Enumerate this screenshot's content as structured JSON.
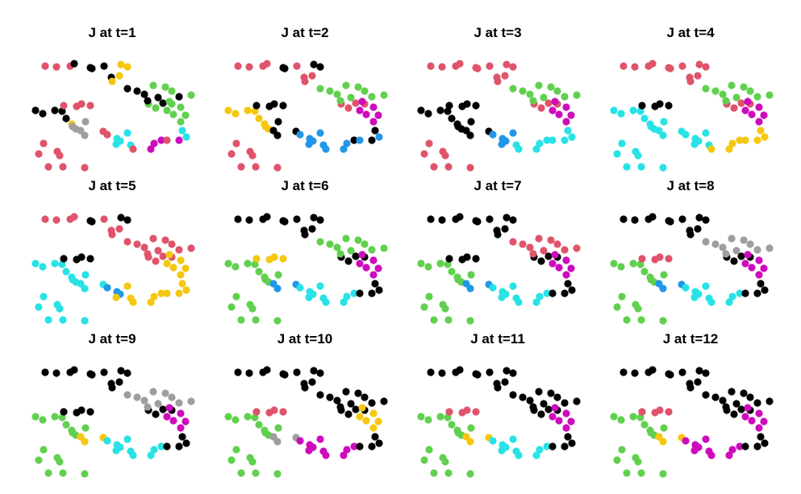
{
  "chart_data": {
    "type": "scatter",
    "layout": "3x4 small multiples",
    "axes_visible": false,
    "grid": false,
    "legend": "none",
    "palette": [
      "#000000",
      "#df536b",
      "#61d04f",
      "#2297e6",
      "#28e2e5",
      "#cd0bbc",
      "#f5c710",
      "#9e9e9e"
    ],
    "shared_x": [
      21,
      35,
      52,
      57,
      77,
      79,
      94,
      103,
      104,
      113,
      115,
      123,
      149,
      158,
      167,
      178,
      9,
      18,
      33,
      42,
      47,
      54,
      55,
      59,
      71,
      65,
      70,
      93,
      98,
      110,
      114,
      123,
      109,
      127,
      130,
      152,
      156,
      165,
      172,
      187,
      196,
      191,
      189,
      195,
      189,
      172,
      180,
      175,
      155,
      170,
      202,
      178,
      123,
      135,
      144,
      161,
      187,
      148,
      44,
      66,
      77,
      60,
      13,
      36,
      39,
      19,
      25,
      43,
      70
    ],
    "shared_y": [
      24,
      25,
      24,
      21,
      26,
      27,
      24,
      38,
      43,
      36,
      22,
      25,
      71,
      76,
      70,
      71,
      79,
      83,
      79,
      80,
      89,
      96,
      99,
      102,
      93,
      104,
      110,
      105,
      109,
      114,
      117,
      107,
      121,
      122,
      127,
      127,
      120,
      116,
      116,
      116,
      112,
      104,
      93,
      85,
      75,
      79,
      84,
      68,
      48,
      50,
      60,
      55,
      52,
      55,
      59,
      63,
      62,
      67,
      73,
      71,
      73,
      74,
      133,
      130,
      135,
      120,
      149,
      149,
      150
    ],
    "panels": [
      {
        "title": "J at t=1",
        "colors": [
          1,
          1,
          1,
          0,
          0,
          0,
          0,
          0,
          6,
          6,
          6,
          6,
          2,
          2,
          0,
          2,
          0,
          0,
          0,
          0,
          0,
          6,
          7,
          7,
          7,
          7,
          7,
          1,
          1,
          4,
          4,
          4,
          4,
          4,
          1,
          5,
          5,
          5,
          1,
          5,
          4,
          4,
          2,
          2,
          2,
          2,
          2,
          2,
          2,
          2,
          2,
          2,
          0,
          0,
          0,
          0,
          0,
          0,
          1,
          1,
          1,
          1,
          1,
          1,
          1,
          1,
          1,
          1,
          1
        ]
      },
      {
        "title": "J at t=2",
        "colors": [
          1,
          1,
          1,
          1,
          0,
          0,
          1,
          1,
          1,
          1,
          0,
          0,
          1,
          1,
          1,
          1,
          6,
          6,
          6,
          6,
          6,
          6,
          6,
          6,
          0,
          0,
          0,
          0,
          3,
          3,
          3,
          3,
          3,
          3,
          3,
          3,
          3,
          0,
          3,
          0,
          3,
          0,
          5,
          5,
          5,
          5,
          5,
          5,
          2,
          2,
          2,
          2,
          2,
          2,
          2,
          2,
          2,
          2,
          0,
          0,
          0,
          0,
          1,
          1,
          1,
          1,
          1,
          1,
          1
        ]
      },
      {
        "title": "J at t=3",
        "colors": [
          1,
          1,
          1,
          1,
          1,
          1,
          1,
          1,
          1,
          1,
          1,
          1,
          1,
          1,
          1,
          1,
          0,
          0,
          0,
          0,
          0,
          0,
          0,
          0,
          0,
          0,
          0,
          0,
          3,
          3,
          3,
          3,
          3,
          4,
          4,
          4,
          4,
          4,
          4,
          4,
          4,
          4,
          5,
          5,
          5,
          5,
          5,
          5,
          2,
          2,
          2,
          2,
          2,
          2,
          2,
          2,
          2,
          2,
          0,
          0,
          0,
          0,
          1,
          1,
          1,
          1,
          1,
          1,
          1
        ]
      },
      {
        "title": "J at t=4",
        "colors": [
          1,
          1,
          1,
          1,
          1,
          1,
          1,
          1,
          1,
          1,
          1,
          1,
          1,
          1,
          1,
          1,
          4,
          4,
          4,
          4,
          4,
          4,
          4,
          4,
          4,
          4,
          4,
          4,
          4,
          4,
          4,
          4,
          4,
          4,
          6,
          6,
          6,
          6,
          6,
          6,
          6,
          6,
          5,
          5,
          5,
          5,
          5,
          5,
          2,
          2,
          2,
          2,
          2,
          2,
          2,
          2,
          2,
          2,
          0,
          0,
          0,
          0,
          4,
          4,
          4,
          4,
          4,
          4,
          4
        ]
      },
      {
        "title": "J at t=5",
        "colors": [
          1,
          1,
          1,
          1,
          0,
          0,
          1,
          1,
          1,
          1,
          0,
          0,
          1,
          1,
          1,
          1,
          4,
          4,
          4,
          4,
          4,
          4,
          4,
          4,
          4,
          4,
          4,
          4,
          3,
          3,
          3,
          6,
          6,
          6,
          6,
          6,
          6,
          6,
          6,
          6,
          6,
          6,
          6,
          6,
          6,
          6,
          6,
          6,
          1,
          1,
          1,
          1,
          1,
          1,
          1,
          1,
          1,
          1,
          0,
          0,
          0,
          0,
          4,
          4,
          4,
          4,
          4,
          4,
          4
        ]
      },
      {
        "title": "J at t=6",
        "colors": [
          0,
          0,
          0,
          0,
          0,
          0,
          0,
          0,
          0,
          0,
          0,
          0,
          0,
          0,
          0,
          0,
          2,
          2,
          2,
          2,
          2,
          2,
          2,
          2,
          2,
          3,
          3,
          3,
          4,
          4,
          4,
          4,
          4,
          4,
          4,
          4,
          4,
          4,
          0,
          0,
          0,
          0,
          5,
          5,
          5,
          5,
          5,
          5,
          2,
          2,
          2,
          2,
          2,
          2,
          2,
          2,
          2,
          2,
          6,
          6,
          6,
          6,
          2,
          2,
          2,
          2,
          2,
          2,
          2
        ]
      },
      {
        "title": "J at t=7",
        "colors": [
          0,
          0,
          0,
          0,
          0,
          0,
          0,
          0,
          0,
          0,
          0,
          0,
          0,
          0,
          0,
          0,
          2,
          2,
          2,
          2,
          2,
          2,
          2,
          2,
          2,
          3,
          3,
          3,
          4,
          4,
          4,
          4,
          4,
          4,
          4,
          4,
          4,
          4,
          0,
          0,
          0,
          0,
          5,
          5,
          5,
          5,
          5,
          5,
          1,
          1,
          1,
          1,
          1,
          1,
          1,
          1,
          1,
          1,
          0,
          0,
          0,
          0,
          2,
          2,
          2,
          2,
          2,
          2,
          2
        ]
      },
      {
        "title": "J at t=8",
        "colors": [
          0,
          0,
          0,
          0,
          0,
          0,
          0,
          0,
          0,
          0,
          0,
          0,
          0,
          0,
          0,
          0,
          2,
          2,
          2,
          2,
          2,
          2,
          2,
          2,
          2,
          3,
          3,
          3,
          4,
          4,
          4,
          4,
          4,
          4,
          4,
          4,
          4,
          4,
          0,
          0,
          0,
          0,
          5,
          5,
          5,
          5,
          5,
          5,
          7,
          7,
          7,
          7,
          7,
          7,
          7,
          7,
          7,
          7,
          1,
          1,
          1,
          1,
          2,
          2,
          2,
          2,
          2,
          2,
          2
        ]
      },
      {
        "title": "J at t=9",
        "colors": [
          0,
          0,
          0,
          0,
          0,
          0,
          0,
          0,
          0,
          0,
          0,
          0,
          0,
          0,
          0,
          0,
          2,
          2,
          2,
          2,
          2,
          2,
          2,
          2,
          2,
          6,
          6,
          6,
          4,
          4,
          4,
          4,
          4,
          4,
          4,
          4,
          4,
          4,
          0,
          0,
          0,
          0,
          5,
          5,
          5,
          5,
          5,
          5,
          7,
          7,
          7,
          7,
          7,
          7,
          7,
          7,
          7,
          7,
          0,
          0,
          0,
          0,
          2,
          2,
          2,
          2,
          2,
          2,
          2
        ]
      },
      {
        "title": "J at t=10",
        "colors": [
          0,
          0,
          0,
          0,
          0,
          0,
          0,
          0,
          0,
          0,
          0,
          0,
          0,
          0,
          0,
          0,
          2,
          2,
          2,
          2,
          2,
          2,
          2,
          2,
          2,
          7,
          7,
          7,
          5,
          5,
          5,
          5,
          5,
          5,
          5,
          5,
          5,
          5,
          0,
          0,
          0,
          0,
          6,
          6,
          6,
          6,
          6,
          6,
          0,
          0,
          0,
          0,
          0,
          0,
          0,
          0,
          0,
          0,
          1,
          1,
          1,
          1,
          2,
          2,
          2,
          2,
          2,
          2,
          2
        ]
      },
      {
        "title": "J at t=11",
        "colors": [
          0,
          0,
          0,
          0,
          0,
          0,
          0,
          0,
          0,
          0,
          0,
          0,
          0,
          0,
          0,
          0,
          2,
          2,
          2,
          2,
          2,
          2,
          2,
          2,
          2,
          6,
          6,
          6,
          4,
          4,
          4,
          4,
          4,
          4,
          4,
          4,
          4,
          4,
          0,
          0,
          0,
          0,
          5,
          5,
          5,
          5,
          5,
          5,
          0,
          0,
          0,
          0,
          0,
          0,
          0,
          0,
          0,
          0,
          1,
          1,
          1,
          1,
          2,
          2,
          2,
          2,
          2,
          2,
          2
        ]
      },
      {
        "title": "J at t=12",
        "colors": [
          0,
          0,
          0,
          0,
          0,
          0,
          0,
          0,
          0,
          0,
          0,
          0,
          0,
          0,
          0,
          0,
          2,
          2,
          2,
          2,
          2,
          2,
          2,
          2,
          2,
          6,
          6,
          6,
          5,
          5,
          5,
          5,
          5,
          5,
          5,
          5,
          5,
          5,
          0,
          0,
          0,
          0,
          5,
          5,
          5,
          5,
          5,
          5,
          0,
          0,
          0,
          0,
          0,
          0,
          0,
          0,
          0,
          0,
          1,
          1,
          1,
          1,
          2,
          2,
          2,
          2,
          2,
          2,
          2
        ]
      }
    ]
  }
}
